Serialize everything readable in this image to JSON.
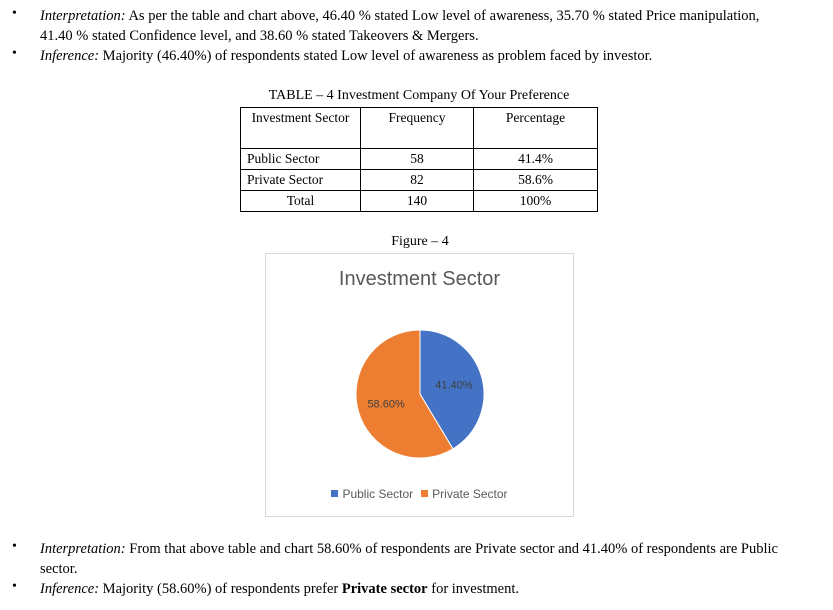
{
  "top_bullets": [
    {
      "lead": "Interpretation:",
      "line1": " As per the table and chart above, 46.40 % stated Low level of awareness, 35.70 % stated Price manipulation,",
      "line2": "41.40 % stated Confidence level, and 38.60 % stated Takeovers & Mergers."
    },
    {
      "lead": "Inference:",
      "text": " Majority (46.40%) of respondents stated Low level of awareness as problem faced by investor."
    }
  ],
  "table": {
    "caption": "TABLE – 4 Investment Company Of Your Preference",
    "headers": [
      "Investment Sector",
      "Frequency",
      "Percentage"
    ],
    "rows": [
      [
        "Public Sector",
        "58",
        "41.4%"
      ],
      [
        "Private Sector",
        "82",
        "58.6%"
      ],
      [
        "Total",
        "140",
        "100%"
      ]
    ]
  },
  "figure_caption": "Figure – 4",
  "chart_data": {
    "type": "pie",
    "title": "Investment Sector",
    "categories": [
      "Public Sector",
      "Private Sector"
    ],
    "values": [
      41.4,
      58.6
    ],
    "labels": [
      "41.40%",
      "58.60%"
    ],
    "colors": [
      "#4472c4",
      "#ed7d31"
    ],
    "legend": "bottom"
  },
  "bottom_bullets": [
    {
      "lead": "Interpretation:",
      "line1": " From that above table and chart 58.60% of respondents are Private sector and 41.40% of respondents are Public",
      "line2": "sector."
    },
    {
      "lead": "Inference:",
      "pre": " Majority (58.60%) of respondents prefer ",
      "bold": "Private sector",
      "post": " for investment."
    }
  ]
}
